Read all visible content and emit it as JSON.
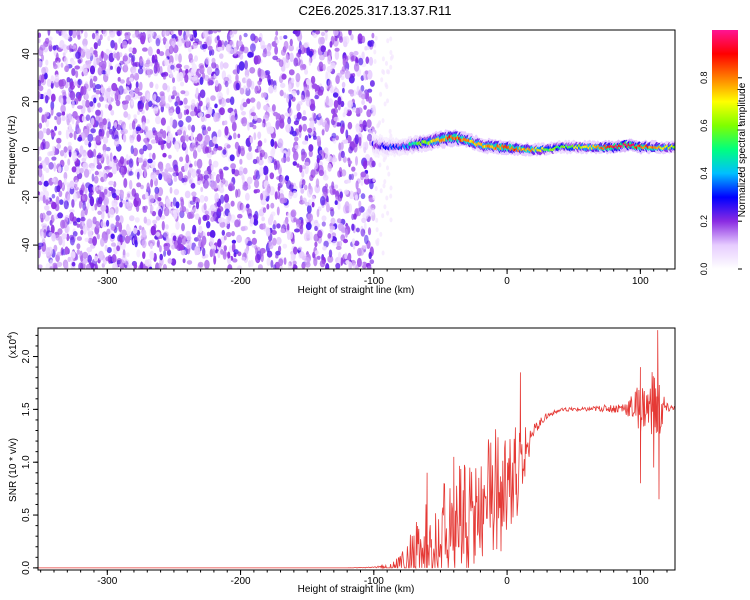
{
  "title": "C2E6.2025.317.13.37.R11",
  "colors": {
    "snr_line": "#e53935",
    "colormap": [
      "#ffffff",
      "#e6ccff",
      "#8a2be2",
      "#0000ff",
      "#00bfff",
      "#00ff7f",
      "#7fff00",
      "#ffff00",
      "#ff7f00",
      "#ff0000",
      "#ff1493"
    ]
  },
  "chart_data": [
    {
      "type": "heatmap",
      "name": "spectrogram",
      "xlabel": "Height of straight line (km)",
      "ylabel": "Frequency (Hz)",
      "xlim": [
        -352,
        126
      ],
      "ylim": [
        -50,
        50
      ],
      "xticks": [
        -300,
        -200,
        -100,
        0,
        100
      ],
      "xtick_labels": [
        "-300",
        "-200",
        "-100",
        "0",
        "100"
      ],
      "yticks": [
        -40,
        -20,
        0,
        20,
        40
      ],
      "ytick_labels": [
        "-40",
        "-20",
        "0",
        "20",
        "40"
      ],
      "colorbar": {
        "label": "Normalized spectral amplitude",
        "range": [
          0,
          1
        ],
        "ticks": [
          0.0,
          0.2,
          0.4,
          0.6,
          0.8
        ],
        "tick_labels": [
          "0.0",
          "0.2",
          "0.4",
          "0.6",
          "0.8"
        ]
      },
      "noise_region_x": [
        -352,
        -100
      ],
      "noise_amplitude_range": [
        0.05,
        0.25
      ],
      "signal_band": {
        "x": [
          -100,
          -90,
          -80,
          -70,
          -60,
          -50,
          -40,
          -30,
          -20,
          -10,
          0,
          10,
          20,
          30,
          40,
          50,
          60,
          70,
          80,
          90,
          100,
          110,
          126
        ],
        "freq": [
          2,
          1,
          1,
          2,
          3,
          4,
          5,
          4,
          2,
          1,
          1,
          0,
          0,
          0,
          1,
          1,
          1,
          1,
          1,
          2,
          1,
          1,
          1
        ],
        "amplitude": [
          0.2,
          0.25,
          0.3,
          0.45,
          0.6,
          0.75,
          0.85,
          0.8,
          0.7,
          0.8,
          0.85,
          0.8,
          0.75,
          0.6,
          0.55,
          0.6,
          0.7,
          0.8,
          0.9,
          0.95,
          0.85,
          0.8,
          0.6
        ],
        "half_width_hz": [
          5,
          4,
          3.5,
          3.5,
          3.5,
          3.5,
          3.5,
          3,
          3,
          3,
          3,
          2.5,
          2.5,
          2.5,
          2.5,
          2.5,
          2.5,
          2.5,
          2.5,
          2.5,
          2.5,
          2.5,
          2.5
        ]
      }
    },
    {
      "type": "line",
      "name": "snr",
      "xlabel": "Height of straight line (km)",
      "ylabel": "SNR (10 * v/v)",
      "ylabel_multiplier": "(x10",
      "ylabel_exponent": "4",
      "ylabel_suffix": ")",
      "xlim": [
        -352,
        126
      ],
      "ylim": [
        -0.02,
        2.27
      ],
      "xticks": [
        -300,
        -200,
        -100,
        0,
        100
      ],
      "xtick_labels": [
        "-300",
        "-200",
        "-100",
        "0",
        "100"
      ],
      "yticks": [
        0.0,
        0.5,
        1.0,
        1.5,
        2.0
      ],
      "ytick_labels": [
        "0.0",
        "0.5",
        "1.0",
        "1.5",
        "2.0"
      ],
      "series": [
        {
          "name": "SNR",
          "x": [
            -352,
            -120,
            -100,
            -90,
            -80,
            -75,
            -70,
            -65,
            -60,
            -55,
            -50,
            -45,
            -40,
            -35,
            -30,
            -25,
            -20,
            -15,
            -10,
            -5,
            0,
            5,
            10,
            15,
            20,
            25,
            30,
            35,
            40,
            50,
            60,
            70,
            80,
            90,
            95,
            100,
            105,
            110,
            115,
            120,
            126
          ],
          "y": [
            0.0,
            0.0,
            0.005,
            0.01,
            0.02,
            0.1,
            0.22,
            0.28,
            0.32,
            0.36,
            0.4,
            0.45,
            0.5,
            0.56,
            0.62,
            0.68,
            0.74,
            0.8,
            0.88,
            0.95,
            1.0,
            1.04,
            1.1,
            1.2,
            1.3,
            1.38,
            1.44,
            1.47,
            1.49,
            1.5,
            1.5,
            1.51,
            1.51,
            1.52,
            1.52,
            1.53,
            1.52,
            1.5,
            1.5,
            1.51,
            1.52
          ],
          "jitter": [
            0,
            0,
            0.005,
            0.02,
            0.1,
            0.2,
            0.25,
            0.3,
            0.32,
            0.34,
            0.36,
            0.38,
            0.4,
            0.42,
            0.42,
            0.42,
            0.42,
            0.42,
            0.42,
            0.45,
            0.4,
            0.35,
            0.3,
            0.12,
            0.06,
            0.04,
            0.03,
            0.02,
            0.02,
            0.02,
            0.02,
            0.03,
            0.04,
            0.08,
            0.15,
            0.25,
            0.2,
            0.4,
            0.3,
            0.05,
            0.02
          ],
          "spikes": [
            [
              -60,
              0.9
            ],
            [
              -40,
              1.05
            ],
            [
              10,
              1.85
            ],
            [
              100,
              1.9
            ],
            [
              113,
              2.25
            ],
            [
              114,
              0.65
            ],
            [
              100,
              0.8
            ],
            [
              110,
              0.95
            ]
          ]
        }
      ]
    }
  ]
}
